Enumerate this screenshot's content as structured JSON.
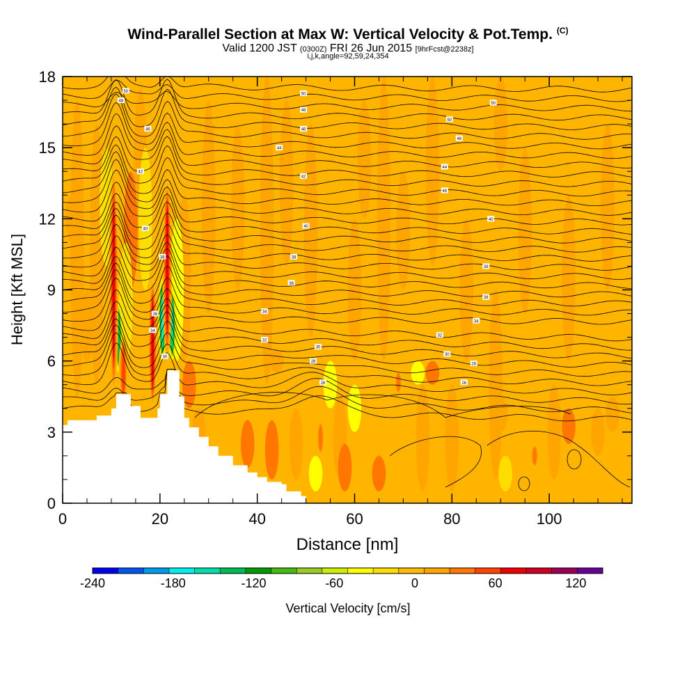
{
  "header": {
    "title": "Wind-Parallel Section at Max W: Vertical Velocity & Pot.Temp.",
    "copyright": "(C)",
    "valid_prefix": "Valid 1200 JST",
    "valid_utc": "(0300Z)",
    "valid_date": "FRI 26 Jun 2015",
    "forecast_tag": "[9hrFcst@2238z]",
    "params": "i,j,k,angle=92,59,24,354"
  },
  "chart_data": {
    "type": "heatmap",
    "xlabel": "Distance [nm]",
    "ylabel": "Height [Kft MSL]",
    "xlim": [
      0,
      117
    ],
    "ylim": [
      0,
      18
    ],
    "x_ticks": [
      0,
      20,
      40,
      60,
      80,
      100
    ],
    "y_ticks": [
      0,
      3,
      6,
      9,
      12,
      15,
      18
    ],
    "colorbar": {
      "label": "Vertical Velocity [cm/s]",
      "range": [
        -240,
        140
      ],
      "step": 20,
      "tick_values": [
        -240,
        -180,
        -120,
        -60,
        0,
        60,
        120
      ],
      "colors": [
        "#0000ee",
        "#0055ee",
        "#0099ee",
        "#00eeee",
        "#00ddaa",
        "#00bb55",
        "#009900",
        "#44bb11",
        "#99cc22",
        "#ccee00",
        "#ffff00",
        "#ffdd00",
        "#ffbb00",
        "#ffa500",
        "#ff7700",
        "#ff4400",
        "#ee0000",
        "#cc0022",
        "#990055",
        "#660099"
      ]
    },
    "terrain_kft": [
      [
        0,
        3.3
      ],
      [
        1,
        3.5
      ],
      [
        7,
        3.7
      ],
      [
        10,
        4.0
      ],
      [
        11,
        4.6
      ],
      [
        13,
        4.6
      ],
      [
        14,
        4.1
      ],
      [
        16,
        3.6
      ],
      [
        19,
        3.6
      ],
      [
        19.5,
        4.0
      ],
      [
        20,
        4.6
      ],
      [
        21,
        4.6
      ],
      [
        21.5,
        5.6
      ],
      [
        23,
        5.6
      ],
      [
        24,
        4.5
      ],
      [
        25,
        3.6
      ],
      [
        26,
        3.2
      ],
      [
        28,
        2.8
      ],
      [
        30,
        2.4
      ],
      [
        32,
        2.0
      ],
      [
        35,
        1.6
      ],
      [
        38,
        1.3
      ],
      [
        40,
        1.1
      ],
      [
        42,
        0.9
      ],
      [
        45,
        0.8
      ],
      [
        46,
        0.5
      ],
      [
        49,
        0.3
      ],
      [
        50,
        0.0
      ]
    ],
    "updraft_cores": [
      {
        "x": 10.5,
        "y_range": [
          4.5,
          14.2
        ],
        "w_max": 100
      },
      {
        "x": 12.5,
        "y_range": [
          4.2,
          7.0
        ],
        "w_max": 80
      },
      {
        "x": 18.5,
        "y_range": [
          4.0,
          9.5
        ],
        "w_max": 90
      },
      {
        "x": 21.5,
        "y_range": [
          6.0,
          13.8
        ],
        "w_max": 100
      },
      {
        "x": 53,
        "y_range": [
          2.0,
          3.5
        ],
        "w_max": 60
      },
      {
        "x": 69,
        "y_range": [
          4.6,
          5.6
        ],
        "w_max": 50
      },
      {
        "x": 97,
        "y_range": [
          1.5,
          2.5
        ],
        "w_max": 50
      }
    ],
    "downdraft_cores": [
      {
        "x": 11.5,
        "y_range": [
          5.5,
          8.5
        ],
        "w_min": -140
      },
      {
        "x": 20.5,
        "y_range": [
          6.0,
          9.5
        ],
        "w_min": -180
      },
      {
        "x": 22.5,
        "y_range": [
          6.0,
          9.0
        ],
        "w_min": -150
      }
    ],
    "theta_contour_labels": [
      {
        "x": 13,
        "y": 17.4,
        "text": "50"
      },
      {
        "x": 12,
        "y": 17.0,
        "text": "48"
      },
      {
        "x": 17.5,
        "y": 15.8,
        "text": "46"
      },
      {
        "x": 16,
        "y": 14.0,
        "text": "42"
      },
      {
        "x": 17,
        "y": 11.6,
        "text": "40"
      },
      {
        "x": 20.5,
        "y": 10.4,
        "text": "38"
      },
      {
        "x": 19,
        "y": 8.0,
        "text": "36"
      },
      {
        "x": 18.5,
        "y": 7.3,
        "text": "34"
      },
      {
        "x": 21,
        "y": 6.2,
        "text": "30"
      },
      {
        "x": 49.5,
        "y": 17.3,
        "text": "50"
      },
      {
        "x": 49.5,
        "y": 16.6,
        "text": "48"
      },
      {
        "x": 49.5,
        "y": 15.8,
        "text": "46"
      },
      {
        "x": 44.5,
        "y": 15.0,
        "text": "44"
      },
      {
        "x": 49.5,
        "y": 13.8,
        "text": "42"
      },
      {
        "x": 50,
        "y": 11.7,
        "text": "40"
      },
      {
        "x": 47.5,
        "y": 10.4,
        "text": "38"
      },
      {
        "x": 47,
        "y": 9.3,
        "text": "36"
      },
      {
        "x": 41.5,
        "y": 8.1,
        "text": "34"
      },
      {
        "x": 41.5,
        "y": 6.9,
        "text": "32"
      },
      {
        "x": 52.5,
        "y": 6.6,
        "text": "30"
      },
      {
        "x": 51.5,
        "y": 6.0,
        "text": "28"
      },
      {
        "x": 53.5,
        "y": 5.1,
        "text": "26"
      },
      {
        "x": 88.5,
        "y": 16.9,
        "text": "50"
      },
      {
        "x": 79.5,
        "y": 16.2,
        "text": "50"
      },
      {
        "x": 81.5,
        "y": 15.4,
        "text": "48"
      },
      {
        "x": 78.5,
        "y": 14.2,
        "text": "44"
      },
      {
        "x": 78.5,
        "y": 13.2,
        "text": "46"
      },
      {
        "x": 88,
        "y": 12.0,
        "text": "40"
      },
      {
        "x": 87,
        "y": 10.0,
        "text": "38"
      },
      {
        "x": 87,
        "y": 8.7,
        "text": "38"
      },
      {
        "x": 85,
        "y": 7.7,
        "text": "34"
      },
      {
        "x": 77.5,
        "y": 7.1,
        "text": "32"
      },
      {
        "x": 79,
        "y": 6.3,
        "text": "30"
      },
      {
        "x": 84.5,
        "y": 5.9,
        "text": "28"
      },
      {
        "x": 82.5,
        "y": 5.1,
        "text": "26"
      }
    ]
  }
}
